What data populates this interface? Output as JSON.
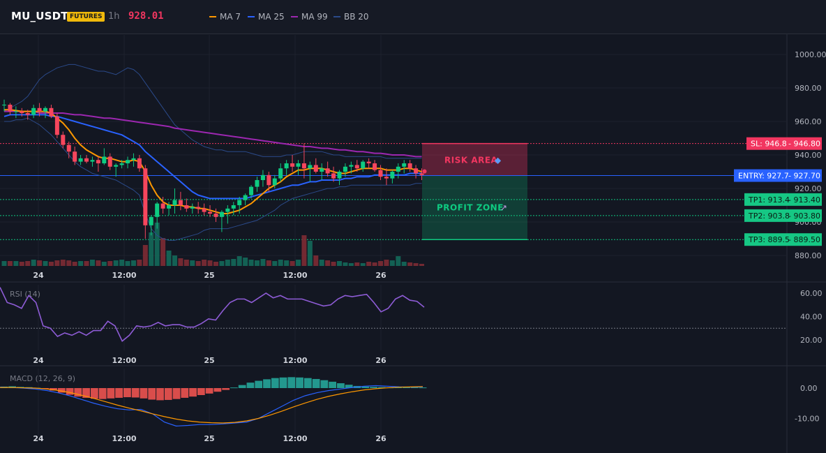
{
  "header": {
    "symbol": "MU_USDT",
    "badge": "FUTURES",
    "timeframe": "1h",
    "last_price": "928.01",
    "indicators": [
      {
        "label": "MA 7",
        "color": "#ff9800"
      },
      {
        "label": "MA 25",
        "color": "#2962ff"
      },
      {
        "label": "MA 99",
        "color": "#9c27b0"
      },
      {
        "label": "BB 20",
        "color": "#2b4a8a"
      }
    ]
  },
  "colors": {
    "up": "#0ecb81",
    "down": "#f6465d",
    "entry": "#2962ff",
    "sl": "#f23660",
    "tp": "#0ecb81"
  },
  "chart_data": [
    {
      "type": "candlestick",
      "title": "MU_USDT 1h",
      "x_tick_labels": [
        "24",
        "12:00",
        "25",
        "12:00",
        "26"
      ],
      "y_ticks": [
        "1000.00",
        "980.00",
        "960.00",
        "940.00",
        "920.00",
        "900.00",
        "880.00"
      ],
      "ylim": [
        876,
        1010
      ],
      "grid": true,
      "ohlc": [
        [
          970,
          973,
          966,
          970
        ],
        [
          970,
          971,
          964,
          966
        ],
        [
          966,
          969,
          962,
          966
        ],
        [
          966,
          968,
          963,
          965
        ],
        [
          965,
          967,
          961,
          964
        ],
        [
          964,
          970,
          962,
          968
        ],
        [
          968,
          971,
          963,
          966
        ],
        [
          966,
          969,
          962,
          968
        ],
        [
          968,
          970,
          962,
          963
        ],
        [
          963,
          965,
          950,
          952
        ],
        [
          952,
          954,
          944,
          946
        ],
        [
          946,
          948,
          938,
          942
        ],
        [
          942,
          945,
          934,
          936
        ],
        [
          936,
          940,
          934,
          938
        ],
        [
          938,
          940,
          935,
          936
        ],
        [
          936,
          939,
          933,
          937
        ],
        [
          937,
          939,
          930,
          935
        ],
        [
          935,
          944,
          934,
          939
        ],
        [
          939,
          941,
          931,
          933
        ],
        [
          933,
          935,
          927,
          934
        ],
        [
          934,
          937,
          932,
          935
        ],
        [
          935,
          939,
          932,
          937
        ],
        [
          937,
          941,
          933,
          938
        ],
        [
          938,
          940,
          930,
          932
        ],
        [
          932,
          934,
          890,
          898
        ],
        [
          898,
          904,
          892,
          903
        ],
        [
          903,
          912,
          896,
          911
        ],
        [
          911,
          915,
          905,
          908
        ],
        [
          908,
          912,
          904,
          910
        ],
        [
          910,
          920,
          905,
          913
        ],
        [
          913,
          918,
          907,
          910
        ],
        [
          910,
          914,
          906,
          908
        ],
        [
          908,
          911,
          905,
          909
        ],
        [
          909,
          912,
          905,
          908
        ],
        [
          908,
          911,
          904,
          906
        ],
        [
          906,
          910,
          903,
          905
        ],
        [
          905,
          908,
          900,
          903
        ],
        [
          903,
          907,
          894,
          906
        ],
        [
          906,
          910,
          899,
          908
        ],
        [
          908,
          912,
          904,
          910
        ],
        [
          910,
          915,
          905,
          913
        ],
        [
          913,
          917,
          910,
          916
        ],
        [
          916,
          922,
          914,
          921
        ],
        [
          921,
          927,
          918,
          925
        ],
        [
          925,
          931,
          921,
          928
        ],
        [
          928,
          930,
          918,
          922
        ],
        [
          922,
          928,
          920,
          926
        ],
        [
          926,
          935,
          924,
          932
        ],
        [
          932,
          937,
          928,
          935
        ],
        [
          935,
          940,
          930,
          933
        ],
        [
          933,
          937,
          928,
          935
        ],
        [
          935,
          947,
          926,
          932
        ],
        [
          932,
          936,
          924,
          934
        ],
        [
          934,
          938,
          929,
          930
        ],
        [
          930,
          935,
          925,
          932
        ],
        [
          932,
          936,
          927,
          929
        ],
        [
          929,
          933,
          924,
          926
        ],
        [
          926,
          931,
          922,
          930
        ],
        [
          930,
          935,
          927,
          933
        ],
        [
          933,
          936,
          929,
          934
        ],
        [
          934,
          937,
          930,
          932
        ],
        [
          932,
          937,
          930,
          936
        ],
        [
          936,
          938,
          932,
          935
        ],
        [
          935,
          937,
          930,
          931
        ],
        [
          931,
          934,
          925,
          927
        ],
        [
          927,
          932,
          922,
          926
        ],
        [
          926,
          931,
          923,
          930
        ],
        [
          930,
          935,
          926,
          933
        ],
        [
          933,
          937,
          929,
          935
        ],
        [
          935,
          937,
          930,
          932
        ],
        [
          932,
          934,
          926,
          929
        ],
        [
          929,
          932,
          925,
          928
        ]
      ],
      "volume": [
        7,
        7,
        7,
        6,
        7,
        9,
        8,
        7,
        6,
        8,
        9,
        8,
        6,
        7,
        7,
        9,
        8,
        6,
        7,
        8,
        9,
        7,
        8,
        9,
        30,
        48,
        62,
        40,
        22,
        15,
        11,
        9,
        8,
        7,
        9,
        8,
        6,
        7,
        9,
        10,
        14,
        12,
        9,
        8,
        10,
        8,
        7,
        9,
        8,
        7,
        9,
        44,
        36,
        15,
        9,
        8,
        6,
        7,
        5,
        4,
        5,
        4,
        6,
        5,
        7,
        9,
        8,
        14,
        6,
        5,
        4,
        3
      ],
      "ma7": [
        967,
        967,
        966.5,
        966,
        966,
        966,
        966,
        966,
        965,
        962,
        959,
        955,
        950,
        946,
        943,
        941,
        939,
        938,
        938,
        937,
        936,
        936,
        937,
        936,
        930,
        922,
        916,
        912,
        910,
        910,
        910,
        909,
        909,
        908,
        908,
        907,
        906,
        905,
        905,
        906,
        907,
        909,
        911,
        914,
        917,
        920,
        922,
        924,
        927,
        929,
        931,
        931,
        932,
        932,
        932,
        931,
        930,
        929,
        929,
        930,
        931,
        932,
        932,
        932,
        932,
        931,
        931,
        931,
        932,
        932,
        931,
        930
      ],
      "ma25": [
        963,
        964,
        964,
        964,
        964,
        964,
        964,
        964,
        963,
        963,
        962,
        961,
        960,
        959,
        958,
        957,
        956,
        955,
        954,
        953,
        952,
        950,
        948,
        946,
        942,
        939,
        936,
        933,
        930,
        927,
        924,
        921,
        918,
        916,
        915,
        914,
        914,
        914,
        914,
        914,
        914,
        914,
        915,
        916,
        917,
        918,
        919,
        920,
        921,
        922,
        922,
        923,
        924,
        924,
        925,
        925,
        925,
        925,
        926,
        926,
        927,
        927,
        927,
        928,
        928,
        928,
        928,
        928,
        928,
        929,
        929,
        929
      ],
      "ma99": [
        966,
        966,
        966,
        966,
        966,
        966,
        965,
        965,
        965,
        965,
        965,
        964.5,
        964,
        964,
        963.5,
        963,
        962.5,
        962,
        962,
        961.5,
        961,
        960.5,
        960,
        959.5,
        959,
        958.5,
        958,
        957.5,
        957,
        956,
        955.5,
        955,
        954.5,
        954,
        953.5,
        953,
        952.5,
        952,
        951.5,
        951,
        950.5,
        950,
        949.5,
        949,
        948.5,
        948,
        947.5,
        947,
        946.5,
        946,
        945.5,
        945,
        945,
        944.5,
        944,
        944,
        943.5,
        943,
        943,
        942.5,
        942,
        942,
        941.5,
        941,
        941,
        940.5,
        940,
        940,
        940,
        939.5,
        939,
        939
      ],
      "bb_upper": [
        966,
        968,
        970,
        972,
        975,
        980,
        985,
        988,
        990,
        992,
        993,
        994,
        994,
        993,
        992,
        991,
        990,
        990,
        989,
        988,
        990,
        992,
        991,
        988,
        983,
        978,
        973,
        968,
        963,
        958,
        955,
        952,
        949,
        947,
        945,
        944,
        943,
        943,
        942,
        942,
        942,
        942,
        941,
        940,
        939,
        939,
        939,
        939,
        940,
        940,
        941,
        942,
        942,
        942,
        942,
        941,
        940,
        940,
        939,
        939,
        939,
        939,
        939,
        939,
        939,
        938,
        938,
        938,
        938,
        938,
        938,
        938
      ],
      "bb_lower": [
        960,
        960,
        961,
        961,
        962,
        960,
        958,
        955,
        952,
        948,
        944,
        940,
        936,
        933,
        931,
        929,
        928,
        927,
        926,
        925,
        923,
        921,
        919,
        916,
        905,
        896,
        892,
        890,
        889,
        889,
        890,
        891,
        892,
        893,
        895,
        896,
        896,
        896,
        896,
        897,
        898,
        899,
        900,
        901,
        903,
        905,
        907,
        910,
        912,
        914,
        915,
        916,
        917,
        918,
        919,
        920,
        920,
        921,
        921,
        922,
        922,
        922,
        922,
        922,
        922,
        922,
        922,
        922,
        922,
        922,
        923,
        923
      ],
      "entry": {
        "label": "ENTRY: 927.7",
        "axis_label": "927.70",
        "value": 927.7
      },
      "stop_loss": {
        "label": "SL: 946.8",
        "axis_label": "946.80",
        "value": 946.8
      },
      "take_profits": [
        {
          "label": "TP1: 913.4",
          "axis_label": "913.40",
          "value": 913.4
        },
        {
          "label": "TP2: 903.8",
          "axis_label": "903.80",
          "value": 903.8
        },
        {
          "label": "TP3: 889.5",
          "axis_label": "889.50",
          "value": 889.5
        }
      ],
      "zones": {
        "risk_label": "RISK AREA",
        "profit_label": "PROFIT ZONE"
      }
    },
    {
      "type": "line",
      "title": "RSI (14)",
      "y_ticks": [
        "60.00",
        "40.00",
        "20.00"
      ],
      "ylim": [
        10,
        66
      ],
      "reference_level": 30,
      "x_tick_labels": [
        "24",
        "12:00",
        "25",
        "12:00",
        "26"
      ],
      "values": [
        65,
        52,
        50,
        47,
        58,
        52,
        32,
        30,
        23,
        26,
        24,
        27,
        24,
        28,
        28,
        36,
        32,
        19,
        24,
        32,
        31,
        32,
        35,
        32,
        33,
        33,
        31,
        31,
        34,
        38,
        37,
        45,
        52,
        55,
        55,
        52,
        56,
        60,
        56,
        58,
        55,
        55,
        55,
        53,
        51,
        49,
        50,
        55,
        58,
        57,
        58,
        59,
        52,
        44,
        47,
        55,
        58,
        54,
        53,
        48
      ]
    },
    {
      "type": "bar",
      "title": "MACD (12, 26, 9)",
      "y_ticks": [
        "0.00",
        "-10.00"
      ],
      "ylim": [
        -14,
        4
      ],
      "x_tick_labels": [
        "24",
        "12:00",
        "25",
        "12:00",
        "26"
      ],
      "histogram": [
        0.5,
        0.6,
        0.4,
        0.3,
        0.1,
        -0.3,
        -0.8,
        -1.5,
        -2.2,
        -2.8,
        -3.2,
        -3.5,
        -3.6,
        -3.4,
        -3.2,
        -3.0,
        -3.1,
        -3.4,
        -3.8,
        -4.0,
        -3.9,
        -3.6,
        -3.2,
        -2.8,
        -2.3,
        -1.8,
        -1.2,
        -0.6,
        0.2,
        1.0,
        1.8,
        2.4,
        2.9,
        3.3,
        3.5,
        3.6,
        3.5,
        3.3,
        3.0,
        2.6,
        2.1,
        1.6,
        1.1,
        0.7,
        0.5,
        0.4,
        0.3,
        0.2,
        0.3,
        0.4,
        0.3,
        0.2
      ],
      "macd": [
        0.3,
        0.2,
        0,
        -0.3,
        -0.8,
        -1.6,
        -2.6,
        -3.8,
        -5.0,
        -6.0,
        -6.8,
        -7.2,
        -7.0,
        -8.5,
        -11.2,
        -12.5,
        -12.3,
        -12.0,
        -12.0,
        -11.8,
        -11.5,
        -11.2,
        -10.0,
        -8.0,
        -6.0,
        -4.0,
        -2.5,
        -1.5,
        -0.8,
        -0.3,
        0.2,
        0.6,
        0.8,
        0.6,
        0.4,
        0.3,
        0.4
      ],
      "signal": [
        0.2,
        0.2,
        0.1,
        0,
        -0.3,
        -0.8,
        -1.5,
        -2.4,
        -3.4,
        -4.5,
        -5.6,
        -6.6,
        -7.5,
        -8.5,
        -9.4,
        -10.2,
        -10.8,
        -11.2,
        -11.4,
        -11.5,
        -11.3,
        -10.8,
        -10.0,
        -8.9,
        -7.6,
        -6.2,
        -4.9,
        -3.7,
        -2.7,
        -1.9,
        -1.2,
        -0.6,
        -0.2,
        0.1,
        0.3,
        0.4,
        0.5
      ]
    }
  ]
}
